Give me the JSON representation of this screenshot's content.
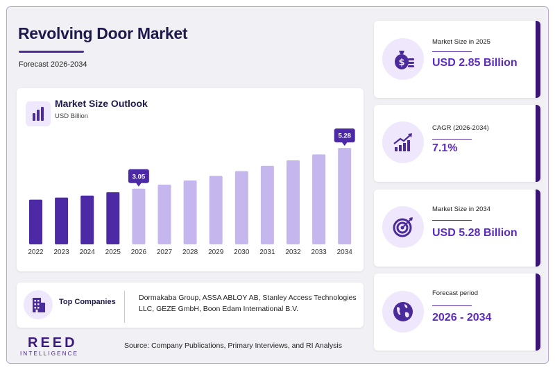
{
  "header": {
    "title": "Revolving Door Market",
    "subtitle": "Forecast 2026-2034"
  },
  "chart_panel": {
    "title": "Market Size Outlook",
    "unit": "USD Billion",
    "icon": "bar-chart-icon"
  },
  "chart_data": {
    "type": "bar",
    "title": "Market Size Outlook",
    "ylabel": "USD Billion",
    "categories": [
      "2022",
      "2023",
      "2024",
      "2025",
      "2026",
      "2027",
      "2028",
      "2029",
      "2030",
      "2031",
      "2032",
      "2033",
      "2034"
    ],
    "values": [
      2.45,
      2.56,
      2.67,
      2.85,
      3.05,
      3.27,
      3.5,
      3.75,
      4.01,
      4.3,
      4.6,
      4.93,
      5.28
    ],
    "annotations": [
      {
        "category": "2026",
        "label": "3.05"
      },
      {
        "category": "2034",
        "label": "5.28"
      }
    ],
    "colors": {
      "historical": "#4d2aa5",
      "forecast": "#c6b6ee",
      "callout": "#4d2aa5"
    },
    "grid": false
  },
  "companies": {
    "label": "Top Companies",
    "text": "Dormakaba Group, ASSA ABLOY AB, Stanley Access Technologies LLC, GEZE GmbH, Boon Edam International B.V.",
    "icon": "building-icon"
  },
  "brand": {
    "name": "REED",
    "tagline": "INTELLIGENCE"
  },
  "source": "Source: Company Publications, Primary Interviews, and RI Analysis",
  "stats": [
    {
      "label": "Market Size in 2025",
      "value": "USD 2.85 Billion",
      "icon": "money-bag-icon"
    },
    {
      "label": "CAGR (2026-2034)",
      "value": "7.1%",
      "icon": "growth-chart-icon"
    },
    {
      "label": "Market Size in 2034",
      "value": "USD 5.28 Billion",
      "icon": "target-icon"
    },
    {
      "label": "Forecast period",
      "value": "2026 - 2034",
      "icon": "globe-icon"
    }
  ],
  "colors": {
    "accent": "#4b2a9c",
    "value_text": "#5b2bbf",
    "card_edge": "#3a1376",
    "icon_bg": "#efe7fb"
  }
}
